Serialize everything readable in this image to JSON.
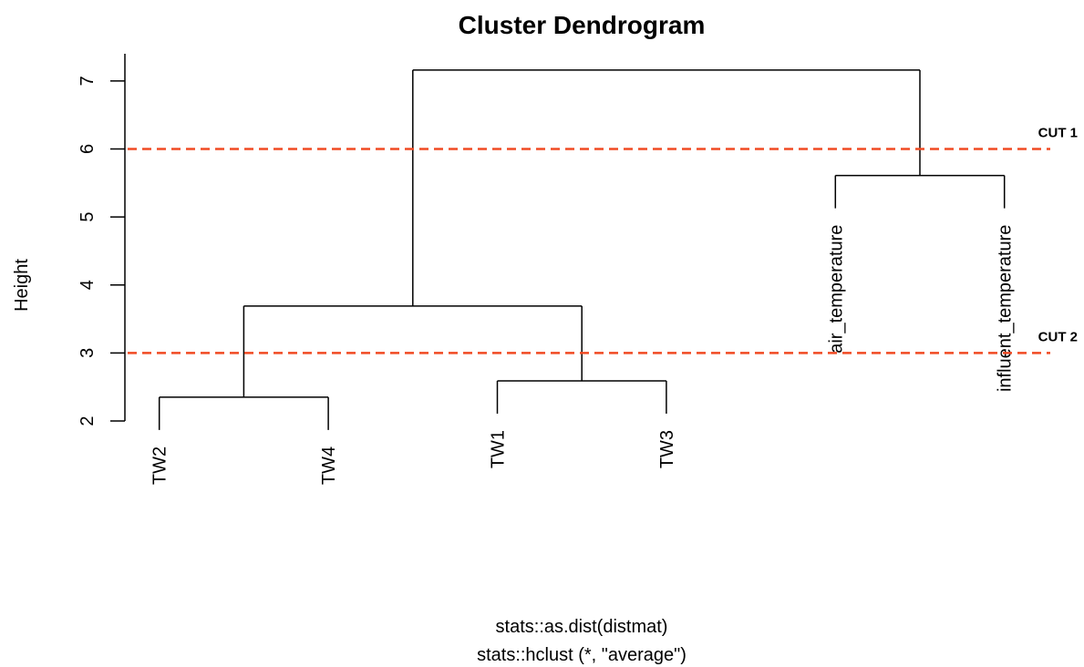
{
  "chart_data": {
    "type": "dendrogram",
    "title": "Cluster Dendrogram",
    "ylabel": "Height",
    "xlabel": [
      "stats::as.dist(distmat)",
      "stats::hclust (*, \"average\")"
    ],
    "ylim": [
      2,
      7.4
    ],
    "yticks": [
      2,
      3,
      4,
      5,
      6,
      7
    ],
    "line_color": "#000000",
    "tree": {
      "height": 7.16,
      "children": [
        {
          "height": 3.69,
          "children": [
            {
              "height": 2.35,
              "children": [
                "TW2",
                "TW4"
              ]
            },
            {
              "height": 2.59,
              "children": [
                "TW1",
                "TW3"
              ]
            }
          ]
        },
        {
          "height": 5.61,
          "children": [
            "air_temperature",
            "influent_temperature"
          ]
        }
      ]
    },
    "hlines": [
      {
        "value": 6,
        "label": "CUT 1",
        "color": "#f04a23"
      },
      {
        "value": 3,
        "label": "CUT 2",
        "color": "#f04a23"
      }
    ]
  }
}
